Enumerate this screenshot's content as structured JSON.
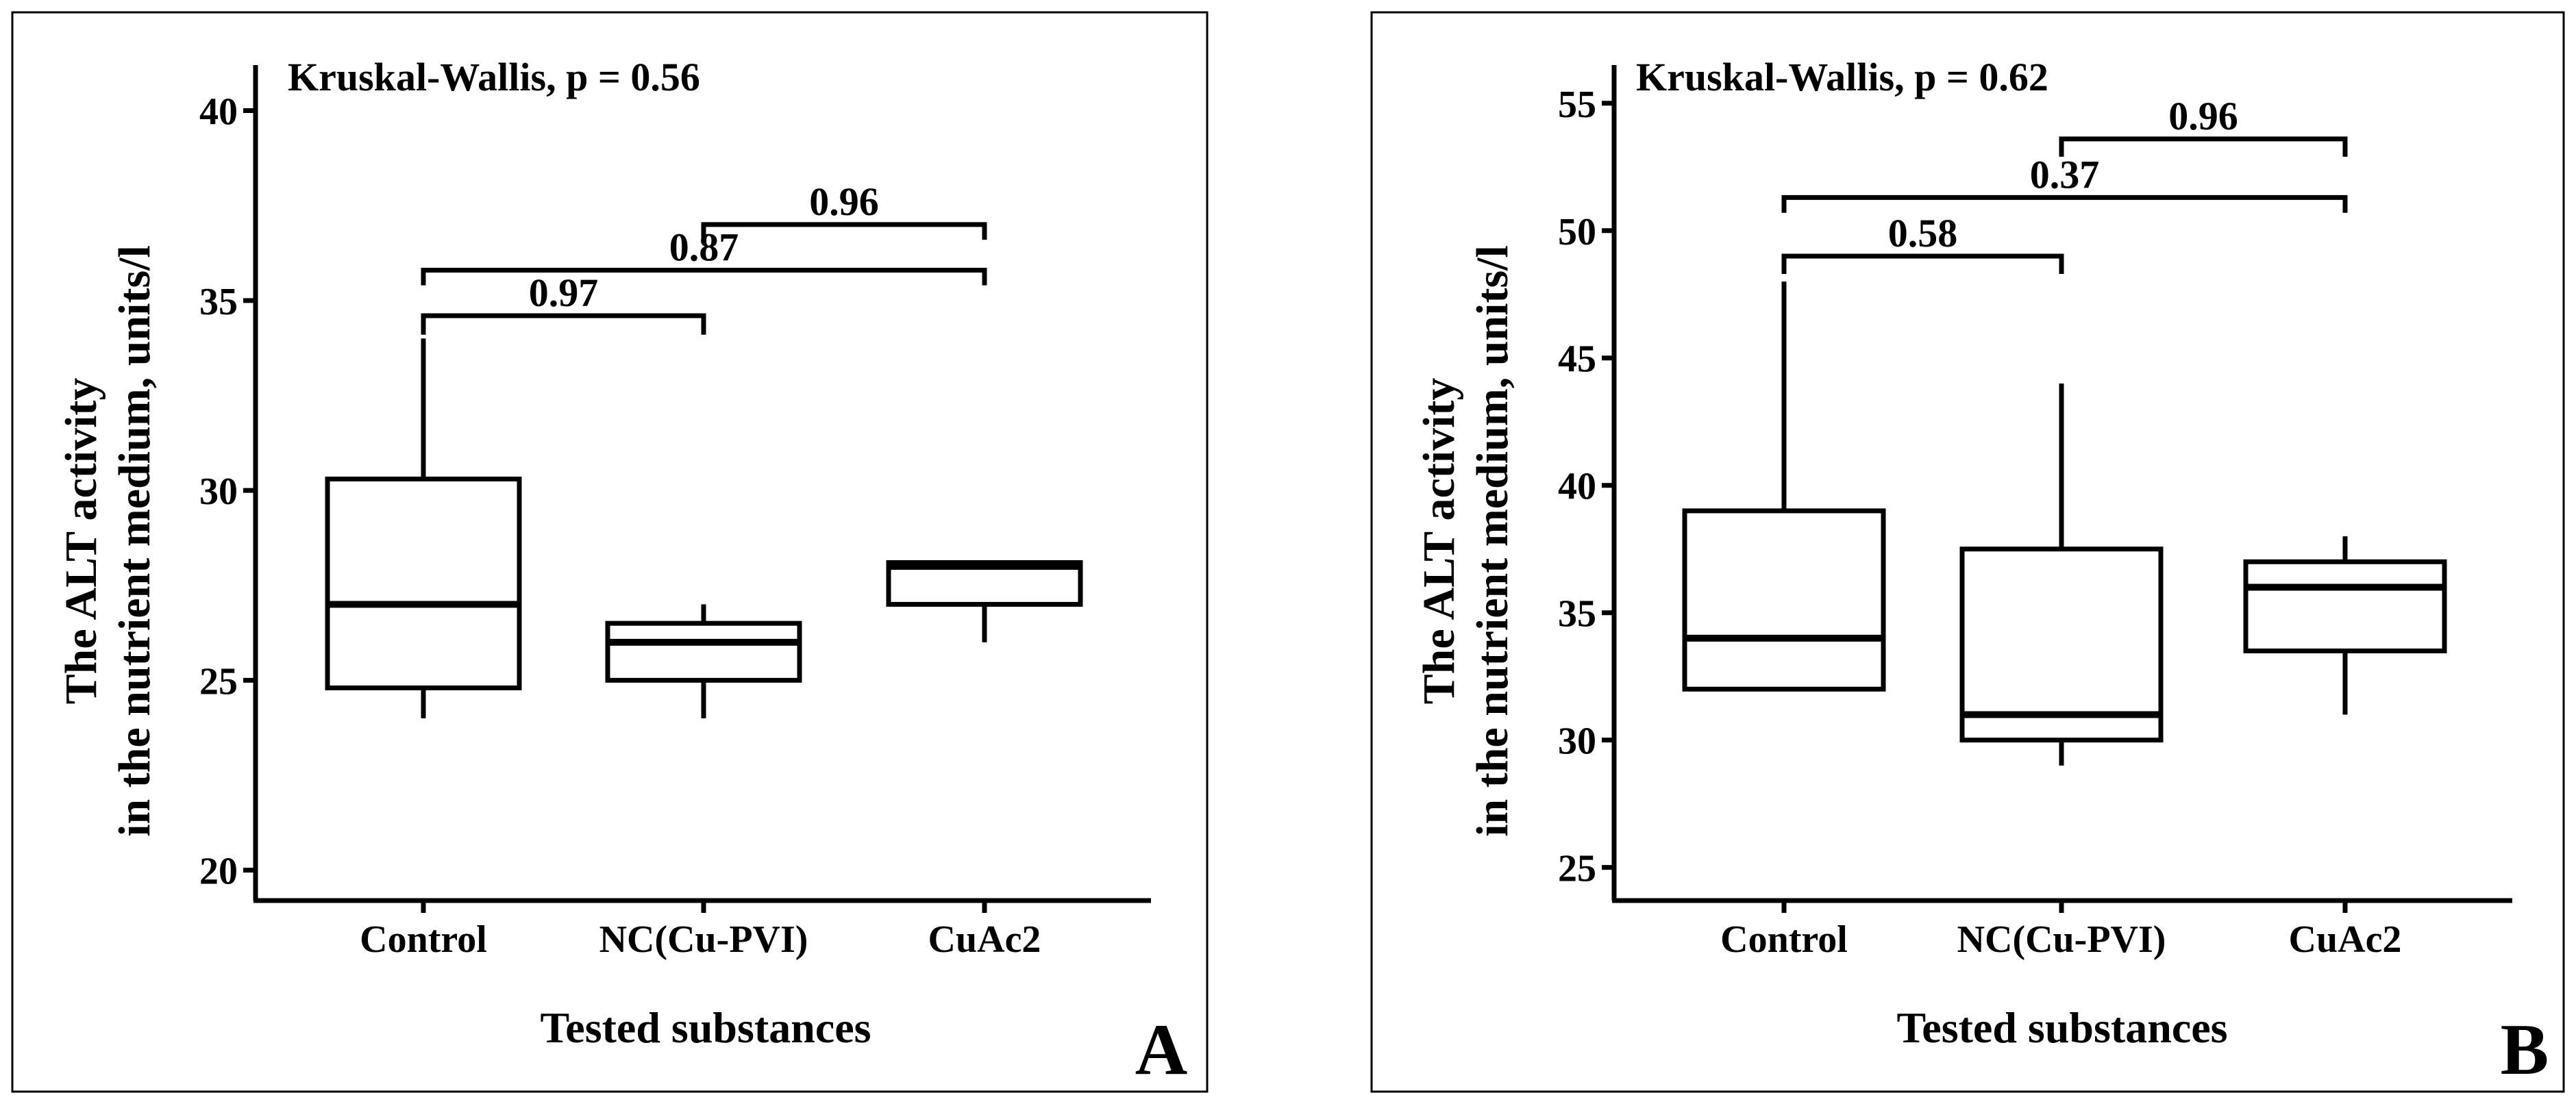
{
  "chart_data": [
    {
      "panel": "A",
      "type": "box",
      "annotation": "Kruskal-Wallis, p = 0.56",
      "ylabel_line1": "The ALT activity",
      "ylabel_line2": "in the nutrient medium, units/l",
      "xlabel": "Tested substances",
      "ylim": [
        19.2,
        41.2
      ],
      "yticks": [
        20,
        25,
        30,
        35,
        40
      ],
      "yticklabels": [
        "20",
        "25",
        "30",
        "35",
        "40"
      ],
      "categories": [
        "Control",
        "NC(Cu-PVI)",
        "CuAc2"
      ],
      "boxes": [
        {
          "min": 24,
          "q1": 24.8,
          "median": 27,
          "q3": 30.3,
          "max": 34
        },
        {
          "min": 24,
          "q1": 25,
          "median": 26,
          "q3": 26.5,
          "max": 27
        },
        {
          "min": 26,
          "q1": 27,
          "median": 28,
          "q3": 28.1,
          "max": 28.1
        }
      ],
      "comparisons": [
        {
          "from": 0,
          "to": 1,
          "label": "0.97",
          "y": 34.6,
          "tick_from": 34.1,
          "tick_to": 34.1
        },
        {
          "from": 0,
          "to": 2,
          "label": "0.87",
          "y": 35.8,
          "tick_from": 35.4,
          "tick_to": 35.4
        },
        {
          "from": 1,
          "to": 2,
          "label": "0.96",
          "y": 37.0,
          "tick_from": 36.6,
          "tick_to": 36.6
        }
      ]
    },
    {
      "panel": "B",
      "type": "box",
      "annotation": "Kruskal-Wallis, p = 0.62",
      "ylabel_line1": "The ALT activity",
      "ylabel_line2": "in the nutrient medium, units/l",
      "xlabel": "Tested substances",
      "ylim": [
        23.7,
        56.5
      ],
      "yticks": [
        25,
        30,
        35,
        40,
        45,
        50,
        55
      ],
      "yticklabels": [
        "25",
        "30",
        "35",
        "40",
        "45",
        "50",
        "55"
      ],
      "categories": [
        "Control",
        "NC(Cu-PVI)",
        "CuAc2"
      ],
      "boxes": [
        {
          "min": 32,
          "q1": 32,
          "median": 34,
          "q3": 39,
          "max": 48
        },
        {
          "min": 29,
          "q1": 30,
          "median": 31,
          "q3": 37.5,
          "max": 44
        },
        {
          "min": 31,
          "q1": 33.5,
          "median": 36,
          "q3": 37,
          "max": 38
        }
      ],
      "comparisons": [
        {
          "from": 0,
          "to": 1,
          "label": "0.58",
          "y": 49.0,
          "tick_from": 48.3,
          "tick_to": 48.3
        },
        {
          "from": 0,
          "to": 2,
          "label": "0.37",
          "y": 51.3,
          "tick_from": 50.7,
          "tick_to": 50.7
        },
        {
          "from": 1,
          "to": 2,
          "label": "0.96",
          "y": 53.6,
          "tick_from": 52.9,
          "tick_to": 52.9
        }
      ]
    }
  ]
}
